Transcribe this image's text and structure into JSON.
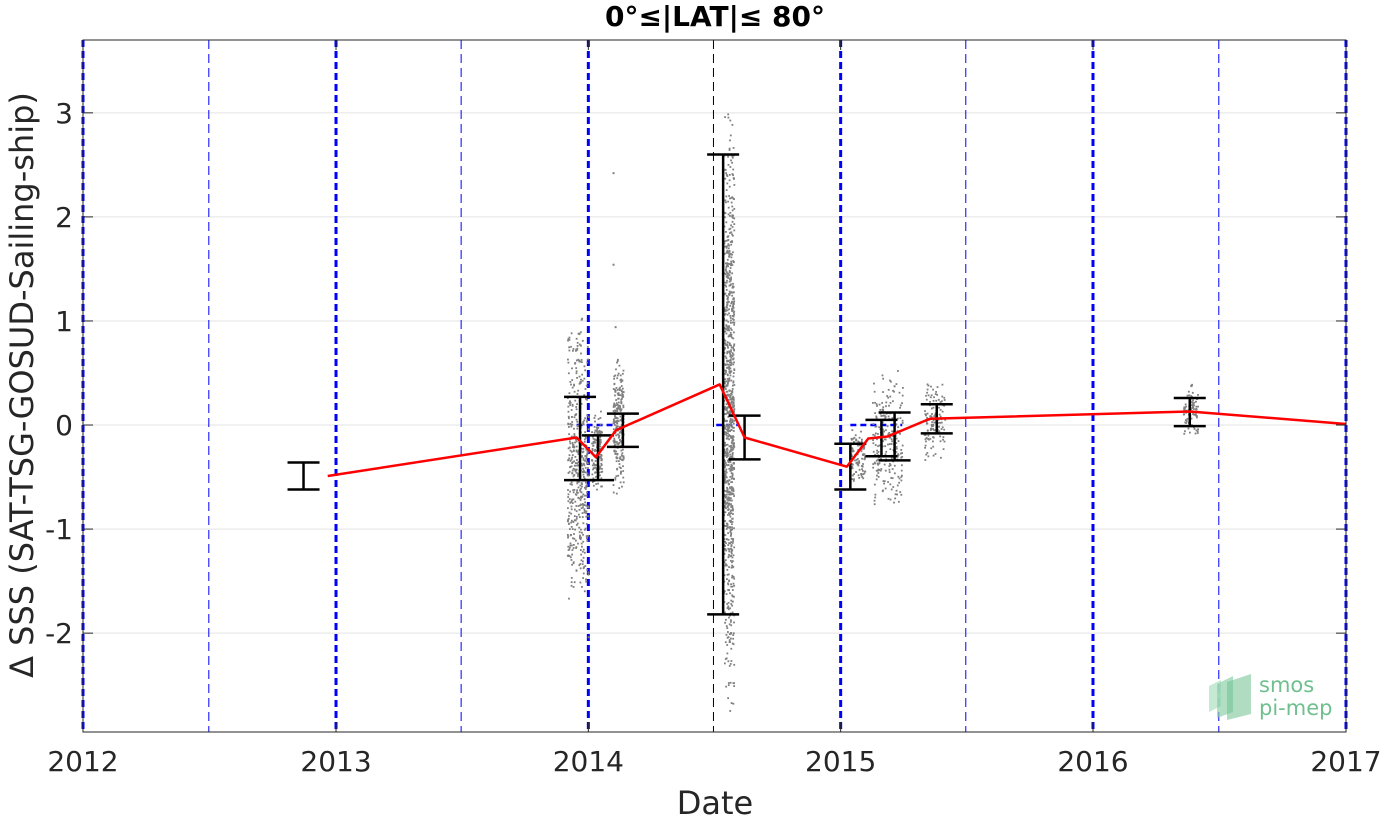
{
  "chart_data": {
    "type": "line",
    "title": "0°≤|LAT|≤ 80°",
    "xlabel": "Date",
    "ylabel": "Δ SSS (SAT-TSG-GOSUD-Sailing-ship)",
    "xlim": [
      "2012-01-01",
      "2017-01-01"
    ],
    "ylim": [
      -2.95,
      3.7
    ],
    "x_ticks": [
      "2012",
      "2013",
      "2014",
      "2015",
      "2016",
      "2017"
    ],
    "y_ticks": [
      -2,
      -1,
      0,
      1,
      2,
      3
    ],
    "grid": true,
    "series": [
      {
        "type": "line",
        "color": "#ff0000",
        "points": [
          {
            "x": "2012-12-20",
            "y": -0.49
          },
          {
            "x": "2013-12-15",
            "y": -0.12
          },
          {
            "x": "2014-01-12",
            "y": -0.31
          },
          {
            "x": "2014-02-10",
            "y": -0.05
          },
          {
            "x": "2014-07-10",
            "y": 0.39
          },
          {
            "x": "2014-08-15",
            "y": -0.12
          },
          {
            "x": "2015-01-10",
            "y": -0.4
          },
          {
            "x": "2015-02-10",
            "y": -0.13
          },
          {
            "x": "2015-03-10",
            "y": -0.11
          },
          {
            "x": "2015-05-10",
            "y": 0.06
          },
          {
            "x": "2016-05-20",
            "y": 0.13
          },
          {
            "x": "2017-01-01",
            "y": 0.01
          }
        ]
      },
      {
        "type": "errorbar",
        "color": "#000000",
        "bars": [
          {
            "x": "2012-11-15",
            "low": -0.62,
            "high": -0.36
          },
          {
            "x": "2013-12-20",
            "low": -0.53,
            "high": 0.27
          },
          {
            "x": "2014-01-15",
            "low": -0.53,
            "high": -0.1
          },
          {
            "x": "2014-02-20",
            "low": -0.21,
            "high": 0.11
          },
          {
            "x": "2014-07-15",
            "low": -1.82,
            "high": 2.6
          },
          {
            "x": "2014-08-15",
            "low": -0.33,
            "high": 0.09
          },
          {
            "x": "2015-01-15",
            "low": -0.62,
            "high": -0.18
          },
          {
            "x": "2015-03-01",
            "low": -0.3,
            "high": 0.05
          },
          {
            "x": "2015-03-20",
            "low": -0.34,
            "high": 0.12
          },
          {
            "x": "2015-05-20",
            "low": -0.08,
            "high": 0.2
          },
          {
            "x": "2016-05-20",
            "low": -0.01,
            "high": 0.26
          }
        ]
      },
      {
        "type": "scatter",
        "color": "#808080",
        "clusters": [
          {
            "x_from": "2013-12-01",
            "x_to": "2013-12-31",
            "y_from": -1.8,
            "y_to": 1.1
          },
          {
            "x_from": "2014-01-05",
            "x_to": "2014-01-20",
            "y_from": -0.65,
            "y_to": 0.2
          },
          {
            "x_from": "2014-02-05",
            "x_to": "2014-02-20",
            "y_from": -0.7,
            "y_to": 0.7
          },
          {
            "x_from": "2014-07-15",
            "x_to": "2014-07-30",
            "y_from": -2.8,
            "y_to": 3.05
          },
          {
            "x_from": "2015-01-15",
            "x_to": "2015-02-05",
            "y_from": -0.6,
            "y_to": 0.0
          },
          {
            "x_from": "2015-02-15",
            "x_to": "2015-03-31",
            "y_from": -0.9,
            "y_to": 0.55
          },
          {
            "x_from": "2015-05-01",
            "x_to": "2015-05-31",
            "y_from": -0.35,
            "y_to": 0.45
          },
          {
            "x_from": "2016-05-10",
            "x_to": "2016-05-31",
            "y_from": -0.15,
            "y_to": 0.42
          }
        ],
        "isolated_points": [
          {
            "x": "2014-02-05",
            "y": 2.43
          },
          {
            "x": "2014-02-05",
            "y": 1.55
          },
          {
            "x": "2014-02-08",
            "y": 0.95
          },
          {
            "x": "2013-12-31",
            "y": -2.03
          }
        ]
      }
    ],
    "reference_lines": [
      {
        "orientation": "vertical",
        "x": "2012-01-01",
        "color": "#0000ff",
        "style": "dashed-bold"
      },
      {
        "orientation": "vertical",
        "x": "2012-07-01",
        "color": "#0000ff",
        "style": "dashed-thin"
      },
      {
        "orientation": "vertical",
        "x": "2013-01-01",
        "color": "#0000ff",
        "style": "dashed-bold"
      },
      {
        "orientation": "vertical",
        "x": "2013-07-01",
        "color": "#0000ff",
        "style": "dashed-thin"
      },
      {
        "orientation": "vertical",
        "x": "2014-01-01",
        "color": "#0000ff",
        "style": "dashed-bold"
      },
      {
        "orientation": "vertical",
        "x": "2014-07-01",
        "color": "#000000",
        "style": "dashed-thin"
      },
      {
        "orientation": "vertical",
        "x": "2015-01-01",
        "color": "#0000ff",
        "style": "dashed-bold"
      },
      {
        "orientation": "vertical",
        "x": "2015-07-01",
        "color": "#0000ff",
        "style": "dashed-thin"
      },
      {
        "orientation": "vertical",
        "x": "2016-01-01",
        "color": "#0000ff",
        "style": "dashed-bold"
      },
      {
        "orientation": "vertical",
        "x": "2016-07-01",
        "color": "#0000ff",
        "style": "dashed-thin"
      },
      {
        "orientation": "vertical",
        "x": "2017-01-01",
        "color": "#0000ff",
        "style": "dashed-bold"
      }
    ],
    "zero_segments": [
      {
        "x_from": "2013-12-15",
        "x_to": "2014-02-05",
        "y": 0,
        "color": "#0000ff"
      },
      {
        "x_from": "2014-07-05",
        "x_to": "2014-08-05",
        "y": 0,
        "color": "#0000ff"
      },
      {
        "x_from": "2015-01-15",
        "x_to": "2015-03-31",
        "y": 0,
        "color": "#0000ff"
      }
    ]
  },
  "logo": {
    "line1": "smos",
    "line2": "pi-mep",
    "color": "#6fbf8f"
  }
}
